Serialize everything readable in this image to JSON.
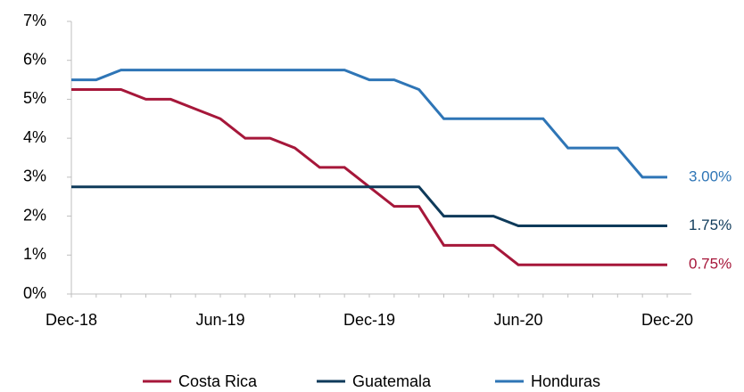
{
  "chart_data": {
    "type": "line",
    "categories": [
      "Dec-18",
      null,
      null,
      null,
      null,
      null,
      "Jun-19",
      null,
      null,
      null,
      null,
      null,
      "Dec-19",
      null,
      null,
      null,
      null,
      null,
      "Jun-20",
      null,
      null,
      null,
      null,
      null,
      "Dec-20"
    ],
    "series": [
      {
        "name": "Costa Rica",
        "color": "#a6173a",
        "values": [
          5.25,
          5.25,
          5.25,
          5.0,
          5.0,
          4.75,
          4.5,
          4.0,
          4.0,
          3.75,
          3.25,
          3.25,
          2.75,
          2.25,
          2.25,
          1.25,
          1.25,
          1.25,
          0.75,
          0.75,
          0.75,
          0.75,
          0.75,
          0.75,
          0.75
        ],
        "value_labels": [
          null,
          null,
          null,
          null,
          null,
          null,
          null,
          null,
          null,
          null,
          null,
          null,
          null,
          null,
          null,
          null,
          null,
          null,
          null,
          null,
          null,
          null,
          null,
          null,
          "0.75%"
        ]
      },
      {
        "name": "Guatemala",
        "color": "#0e3a5a",
        "values": [
          2.75,
          2.75,
          2.75,
          2.75,
          2.75,
          2.75,
          2.75,
          2.75,
          2.75,
          2.75,
          2.75,
          2.75,
          2.75,
          2.75,
          2.75,
          2.0,
          2.0,
          2.0,
          1.75,
          1.75,
          1.75,
          1.75,
          1.75,
          1.75,
          1.75
        ],
        "value_labels": [
          null,
          null,
          null,
          null,
          null,
          null,
          null,
          null,
          null,
          null,
          null,
          null,
          null,
          null,
          null,
          null,
          null,
          null,
          null,
          null,
          null,
          null,
          null,
          null,
          "1.75%"
        ]
      },
      {
        "name": "Honduras",
        "color": "#2e75b6",
        "values": [
          5.5,
          5.5,
          5.75,
          5.75,
          5.75,
          5.75,
          5.75,
          5.75,
          5.75,
          5.75,
          5.75,
          5.75,
          5.5,
          5.5,
          5.25,
          4.5,
          4.5,
          4.5,
          4.5,
          4.5,
          3.75,
          3.75,
          3.75,
          3.0,
          3.0
        ],
        "value_labels": [
          null,
          null,
          null,
          null,
          null,
          null,
          null,
          null,
          null,
          null,
          null,
          null,
          null,
          null,
          null,
          null,
          null,
          null,
          null,
          null,
          null,
          null,
          null,
          null,
          "3.00%"
        ]
      }
    ],
    "ylim": [
      0,
      7
    ],
    "yticks": [
      {
        "value": 0,
        "label": "0%"
      },
      {
        "value": 1,
        "label": "1%"
      },
      {
        "value": 2,
        "label": "2%"
      },
      {
        "value": 3,
        "label": "3%"
      },
      {
        "value": 4,
        "label": "4%"
      },
      {
        "value": 5,
        "label": "5%"
      },
      {
        "value": 6,
        "label": "6%"
      },
      {
        "value": 7,
        "label": "7%"
      }
    ],
    "legend": "bottom"
  }
}
